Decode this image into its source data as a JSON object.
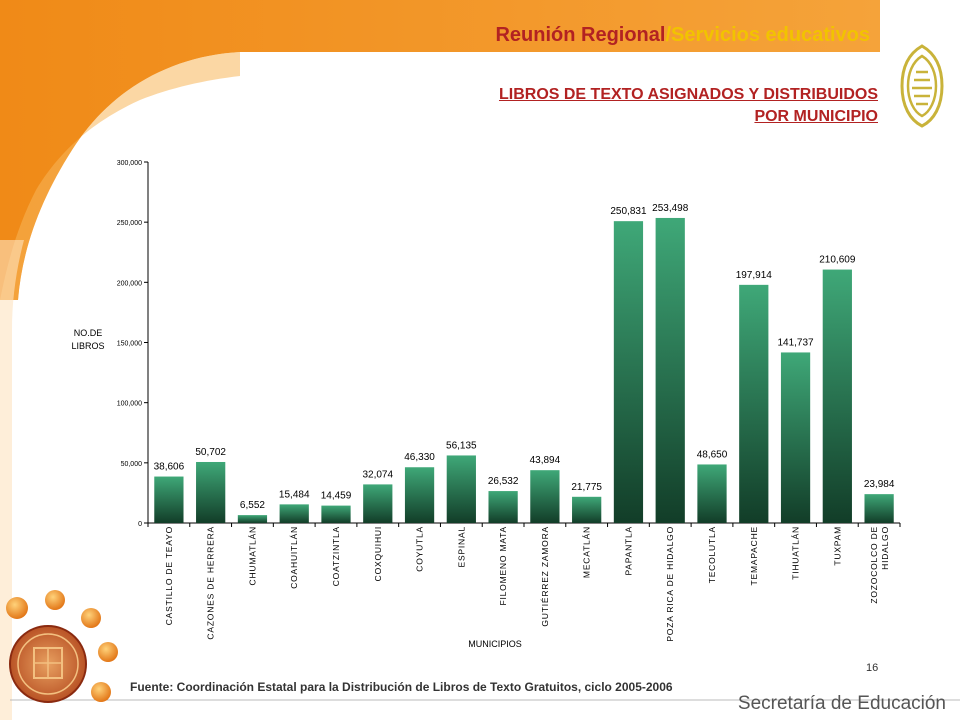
{
  "header": {
    "title_part1": "Reunión Regional",
    "separator": "/",
    "title_part2": "Servicios educativos"
  },
  "subtitle": {
    "line1": "LIBROS DE TEXTO ASIGNADOS Y DISTRIBUIDOS",
    "line2": "POR MUNICIPIO"
  },
  "footer": {
    "source": "Fuente: Coordinación Estatal para la Distribución de Libros de Texto Gratuitos, ciclo 2005-2006",
    "page_number": "16",
    "org_name": "Secretaría de Educación"
  },
  "colors": {
    "accent_orange": "#f28c1a",
    "title_red": "#b22222",
    "title_yellow": "#f2c300",
    "bar_top": "#3fa878",
    "bar_bottom": "#123d28"
  },
  "icons": {
    "right_logo": "education-logo-icon",
    "left_seal": "state-seal-icon"
  },
  "chart_data": {
    "type": "bar",
    "title": "",
    "xlabel": "MUNICIPIOS",
    "ylabel": "NO.DE LIBROS",
    "ylim": [
      0,
      300000
    ],
    "yticks": [
      0,
      50000,
      100000,
      150000,
      200000,
      250000,
      300000
    ],
    "ytick_labels": [
      "0",
      "50,000",
      "100,000",
      "150,000",
      "200,000",
      "250,000",
      "300,000"
    ],
    "grid": false,
    "legend": "none",
    "categories": [
      "CASTILLO DE TEAYO",
      "CAZONES DE HERRERA",
      "CHUMATLÁN",
      "COAHUITLÁN",
      "COATZINTLA",
      "COXQUIHUI",
      "COYUTLA",
      "ESPINAL",
      "FILOMENO MATA",
      "GUTIÉRREZ ZAMORA",
      "MECATLÁN",
      "PAPANTLA",
      "POZA RICA DE HIDALGO",
      "TECOLUTLA",
      "TEMAPACHE",
      "TIHUATLÁN",
      "TUXPAM",
      "ZOZOCOLCO DE HIDALGO"
    ],
    "values": [
      38606,
      50702,
      6552,
      15484,
      14459,
      32074,
      46330,
      56135,
      26532,
      43894,
      21775,
      250831,
      253498,
      48650,
      197914,
      141737,
      210609,
      23984
    ],
    "value_labels": [
      "38,606",
      "50,702",
      "6,552",
      "15,484",
      "14,459",
      "32,074",
      "46,330",
      "56,135",
      "26,532",
      "43,894",
      "21,775",
      "250,831",
      "253,498",
      "48,650",
      "197,914",
      "141,737",
      "210,609",
      "23,984"
    ]
  }
}
